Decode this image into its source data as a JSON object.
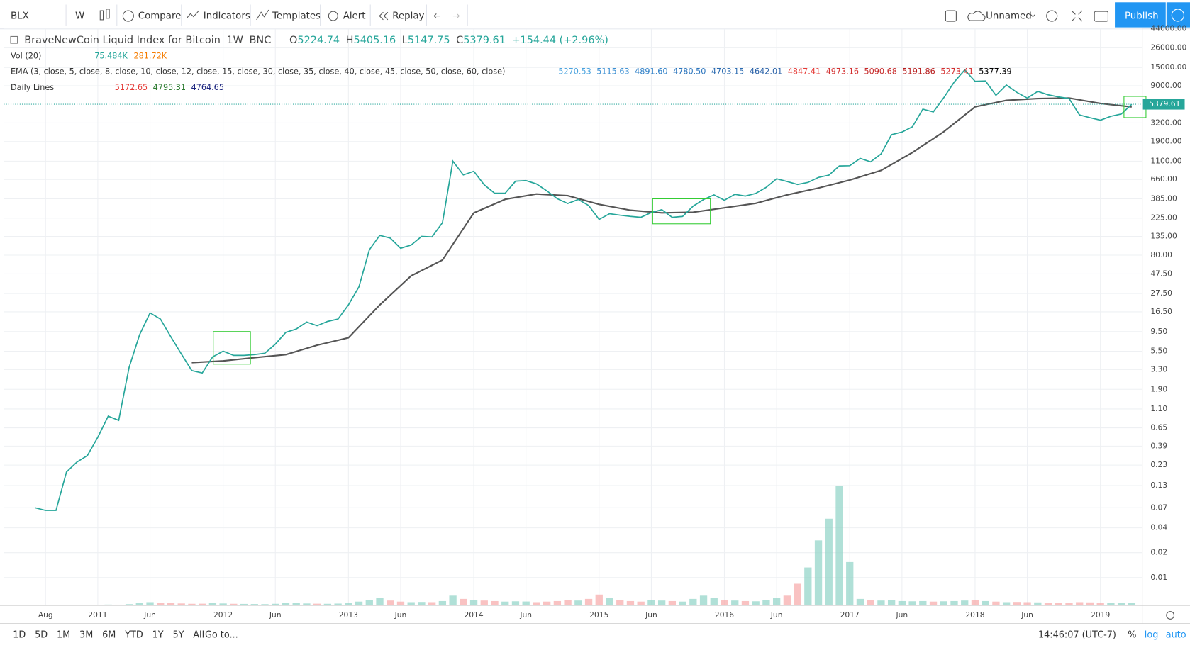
{
  "toolbar": {
    "symbol": "BLX",
    "interval": "W",
    "buttons": [
      "Compare",
      "Indicators",
      "Templates",
      "Alert",
      "Replay"
    ],
    "layout_name": "Unnamed",
    "publish": "Publish"
  },
  "legend": {
    "title": "BraveNewCoin Liquid Index for Bitcoin",
    "interval": "1W",
    "exchange": "BNC",
    "o_label": "O",
    "open": "5224.74",
    "h_label": "H",
    "high": "5405.16",
    "l_label": "L",
    "low": "5147.75",
    "c_label": "C",
    "close": "5379.61",
    "change": "+154.44 (+2.96%)",
    "vol_label": "Vol (20)",
    "vol_values": [
      "75.484K",
      "281.72K"
    ],
    "ema_label": "EMA (3, close, 5, close, 8, close, 10, close, 12, close, 15, close, 30, close, 35, close, 40, close, 45, close, 50, close, 60, close)",
    "ema_values": [
      "5270.53",
      "5115.63",
      "4891.60",
      "4780.50",
      "4703.15",
      "4642.01",
      "4847.41",
      "4973.16",
      "5090.68",
      "5191.86",
      "5273.41",
      "5377.39"
    ],
    "daily_label": "Daily Lines",
    "daily_values": [
      "5172.65",
      "4795.31",
      "4764.65"
    ]
  },
  "chart_data": {
    "type": "line",
    "log_scale": true,
    "grid": true,
    "color": "#26a69a",
    "x": [
      "2010-07",
      "2010-08",
      "2010-09",
      "2010-10",
      "2010-11",
      "2010-12",
      "2011-01",
      "2011-02",
      "2011-03",
      "2011-04",
      "2011-05",
      "2011-06",
      "2011-07",
      "2011-08",
      "2011-09",
      "2011-10",
      "2011-11",
      "2011-12",
      "2012-01",
      "2012-02",
      "2012-03",
      "2012-04",
      "2012-05",
      "2012-06",
      "2012-07",
      "2012-08",
      "2012-09",
      "2012-10",
      "2012-11",
      "2012-12",
      "2013-01",
      "2013-02",
      "2013-03",
      "2013-04",
      "2013-05",
      "2013-06",
      "2013-07",
      "2013-08",
      "2013-09",
      "2013-10",
      "2013-11",
      "2013-12",
      "2014-01",
      "2014-02",
      "2014-03",
      "2014-04",
      "2014-05",
      "2014-06",
      "2014-07",
      "2014-08",
      "2014-09",
      "2014-10",
      "2014-11",
      "2014-12",
      "2015-01",
      "2015-02",
      "2015-03",
      "2015-04",
      "2015-05",
      "2015-06",
      "2015-07",
      "2015-08",
      "2015-09",
      "2015-10",
      "2015-11",
      "2015-12",
      "2016-01",
      "2016-02",
      "2016-03",
      "2016-04",
      "2016-05",
      "2016-06",
      "2016-07",
      "2016-08",
      "2016-09",
      "2016-10",
      "2016-11",
      "2016-12",
      "2017-01",
      "2017-02",
      "2017-03",
      "2017-04",
      "2017-05",
      "2017-06",
      "2017-07",
      "2017-08",
      "2017-09",
      "2017-10",
      "2017-11",
      "2017-12",
      "2018-01",
      "2018-02",
      "2018-03",
      "2018-04",
      "2018-05",
      "2018-06",
      "2018-07",
      "2018-08",
      "2018-09",
      "2018-10",
      "2018-11",
      "2018-12",
      "2019-01",
      "2019-02",
      "2019-03",
      "2019-04"
    ],
    "values": [
      0.07,
      0.065,
      0.065,
      0.19,
      0.25,
      0.3,
      0.5,
      0.9,
      0.8,
      3.5,
      8.7,
      16,
      13.5,
      8.2,
      5.1,
      3.2,
      3,
      4.7,
      5.5,
      4.9,
      4.9,
      5,
      5.2,
      6.7,
      9.3,
      10.2,
      12.4,
      11.2,
      12.6,
      13.5,
      20,
      33,
      93,
      139,
      129,
      97,
      106,
      135,
      133,
      198,
      1100,
      750,
      830,
      570,
      450,
      450,
      630,
      640,
      585,
      480,
      386,
      338,
      378,
      320,
      217,
      254,
      244,
      236,
      230,
      263,
      285,
      230,
      236,
      314,
      377,
      430,
      370,
      437,
      416,
      448,
      531,
      673,
      624,
      575,
      609,
      700,
      745,
      963,
      970,
      1190,
      1080,
      1350,
      2300,
      2480,
      2870,
      4700,
      4340,
      6450,
      10000,
      14000,
      10200,
      10300,
      6900,
      9200,
      7500,
      6400,
      7700,
      7000,
      6600,
      6300,
      4000,
      3700,
      3450,
      3850,
      4100,
      5379.61
    ],
    "volume": [
      50000,
      40000,
      30000,
      60000,
      50000,
      40000,
      60000,
      80000,
      70000,
      120000,
      200000,
      300000,
      250000,
      220000,
      180000,
      150000,
      160000,
      200000,
      180000,
      150000,
      140000,
      130000,
      120000,
      150000,
      200000,
      230000,
      180000,
      160000,
      150000,
      170000,
      200000,
      350000,
      500000,
      700000,
      450000,
      350000,
      300000,
      320000,
      300000,
      400000,
      900000,
      600000,
      500000,
      450000,
      400000,
      350000,
      380000,
      360000,
      300000,
      350000,
      400000,
      500000,
      450000,
      600000,
      1000000,
      700000,
      500000,
      400000,
      350000,
      500000,
      450000,
      400000,
      350000,
      600000,
      900000,
      700000,
      500000,
      450000,
      400000,
      380000,
      500000,
      700000,
      900000,
      2000000,
      3500000,
      6000000,
      8000000,
      11000000,
      4000000,
      600000,
      500000,
      450000,
      500000,
      400000,
      380000,
      400000,
      350000,
      380000,
      400000,
      450000,
      500000,
      400000,
      350000,
      300000,
      320000,
      300000,
      280000,
      260000,
      250000,
      240000,
      300000,
      280000,
      250000,
      240000,
      230000,
      250000
    ],
    "volume_color": "#f7a8a8",
    "volume_lim": [
      0,
      14000000
    ],
    "ema": {
      "x": [
        "2011-10",
        "2012-01",
        "2012-04",
        "2012-07",
        "2012-10",
        "2013-01",
        "2013-04",
        "2013-07",
        "2013-10",
        "2014-01",
        "2014-04",
        "2014-07",
        "2014-10",
        "2015-01",
        "2015-04",
        "2015-07",
        "2015-10",
        "2016-01",
        "2016-04",
        "2016-07",
        "2016-10",
        "2017-01",
        "2017-04",
        "2017-07",
        "2017-10",
        "2018-01",
        "2018-04",
        "2018-07",
        "2018-10",
        "2019-01",
        "2019-04"
      ],
      "values": [
        4,
        4.2,
        4.6,
        5,
        6.5,
        8,
        20,
        45,
        70,
        260,
        380,
        440,
        420,
        330,
        280,
        260,
        265,
        300,
        340,
        430,
        520,
        650,
        850,
        1400,
        2500,
        5000,
        6000,
        6300,
        6400,
        5500,
        5000
      ],
      "color": "#555555"
    },
    "xlim": [
      "2010-04",
      "2019-05"
    ],
    "xticks": [
      {
        "value": "2010-08",
        "label": "Aug"
      },
      {
        "value": "2011-01",
        "label": "2011"
      },
      {
        "value": "2011-06",
        "label": "Jun"
      },
      {
        "value": "2012-01",
        "label": "2012"
      },
      {
        "value": "2012-06",
        "label": "Jun"
      },
      {
        "value": "2013-01",
        "label": "2013"
      },
      {
        "value": "2013-06",
        "label": "Jun"
      },
      {
        "value": "2014-01",
        "label": "2014"
      },
      {
        "value": "2014-06",
        "label": "Jun"
      },
      {
        "value": "2015-01",
        "label": "2015"
      },
      {
        "value": "2015-06",
        "label": "Jun"
      },
      {
        "value": "2016-01",
        "label": "2016"
      },
      {
        "value": "2016-06",
        "label": "Jun"
      },
      {
        "value": "2017-01",
        "label": "2017"
      },
      {
        "value": "2017-06",
        "label": "Jun"
      },
      {
        "value": "2018-01",
        "label": "2018"
      },
      {
        "value": "2018-06",
        "label": "Jun"
      },
      {
        "value": "2019-01",
        "label": "2019"
      }
    ],
    "ylim": [
      0.0046,
      44000
    ],
    "yticks": [
      {
        "value": 44000,
        "label": "44000.00"
      },
      {
        "value": 26000,
        "label": "26000.00"
      },
      {
        "value": 15000,
        "label": "15000.00"
      },
      {
        "value": 9000,
        "label": "9000.00"
      },
      {
        "value": 3200,
        "label": "3200.00"
      },
      {
        "value": 1900,
        "label": "1900.00"
      },
      {
        "value": 1100,
        "label": "1100.00"
      },
      {
        "value": 660,
        "label": "660.00"
      },
      {
        "value": 385,
        "label": "385.00"
      },
      {
        "value": 225,
        "label": "225.00"
      },
      {
        "value": 135,
        "label": "135.00"
      },
      {
        "value": 80,
        "label": "80.00"
      },
      {
        "value": 47.5,
        "label": "47.50"
      },
      {
        "value": 27.5,
        "label": "27.50"
      },
      {
        "value": 16.5,
        "label": "16.50"
      },
      {
        "value": 9.5,
        "label": "9.50"
      },
      {
        "value": 5.5,
        "label": "5.50"
      },
      {
        "value": 3.3,
        "label": "3.30"
      },
      {
        "value": 1.9,
        "label": "1.90"
      },
      {
        "value": 1.1,
        "label": "1.10"
      },
      {
        "value": 0.65,
        "label": "0.65"
      },
      {
        "value": 0.39,
        "label": "0.39"
      },
      {
        "value": 0.23,
        "label": "0.23"
      },
      {
        "value": 0.13,
        "label": "0.13"
      },
      {
        "value": 0.07,
        "label": "0.07"
      },
      {
        "value": 0.04,
        "label": "0.04"
      },
      {
        "value": 0.02,
        "label": "0.02"
      },
      {
        "value": 0.01,
        "label": "0.01"
      }
    ],
    "last_price": {
      "value": 5379.61,
      "label": "5379.61"
    }
  },
  "bottom_bar": {
    "ranges": [
      "1D",
      "5D",
      "1M",
      "3M",
      "6M",
      "YTD",
      "1Y",
      "5Y",
      "All"
    ],
    "goto": "Go to...",
    "time": "14:46:07 (UTC-7)",
    "percent": "%",
    "log": "log",
    "auto": "auto"
  }
}
